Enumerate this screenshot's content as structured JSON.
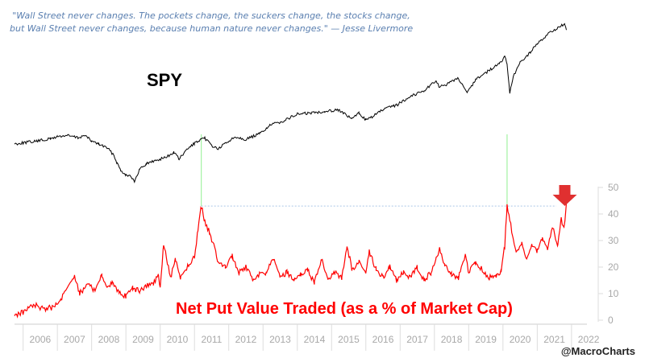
{
  "quote": {
    "line1": "\"Wall Street never changes. The pockets change, the suckers change, the stocks change,",
    "line2": "but Wall Street never changes, because human nature never changes.\" — Jesse Livermore"
  },
  "credit": "@MacroCharts",
  "colors": {
    "spy_line": "#000000",
    "put_line": "#ff0000",
    "spike_connector": "#90ee90",
    "threshold_line": "#aac8e8",
    "arrow": "#e03030",
    "axis_text": "#a8a8a8"
  },
  "chart_data": [
    {
      "type": "line",
      "series": [
        {
          "name": "SPY"
        }
      ],
      "label": "SPY",
      "x": [
        2005.75,
        2006.0,
        2006.4,
        2006.8,
        2007.0,
        2007.3,
        2007.6,
        2007.8,
        2008.0,
        2008.2,
        2008.45,
        2008.65,
        2008.75,
        2008.85,
        2009.0,
        2009.15,
        2009.25,
        2009.4,
        2009.6,
        2009.9,
        2010.2,
        2010.4,
        2010.55,
        2010.8,
        2011.0,
        2011.3,
        2011.55,
        2011.7,
        2011.9,
        2012.2,
        2012.5,
        2012.9,
        2013.2,
        2013.6,
        2014.0,
        2014.4,
        2014.8,
        2015.2,
        2015.45,
        2015.6,
        2015.8,
        2016.0,
        2016.1,
        2016.5,
        2016.9,
        2017.3,
        2017.7,
        2018.05,
        2018.15,
        2018.4,
        2018.7,
        2018.97,
        2019.2,
        2019.5,
        2019.9,
        2020.05,
        2020.12,
        2020.2,
        2020.3,
        2020.5,
        2020.8,
        2021.0,
        2021.3,
        2021.6,
        2021.8,
        2021.85
      ],
      "values": [
        155,
        157,
        160,
        164,
        168,
        170,
        166,
        170,
        160,
        155,
        148,
        135,
        120,
        108,
        100,
        98,
        86,
        110,
        120,
        126,
        132,
        140,
        128,
        146,
        156,
        165,
        150,
        146,
        156,
        168,
        163,
        173,
        188,
        196,
        208,
        210,
        213,
        216,
        205,
        200,
        210,
        198,
        200,
        216,
        224,
        240,
        250,
        268,
        256,
        262,
        272,
        246,
        270,
        282,
        298,
        310,
        298,
        245,
        274,
        300,
        318,
        334,
        350,
        362,
        368,
        358
      ]
    },
    {
      "type": "line",
      "series": [
        {
          "name": "Net Put Value Traded (as a % of Market Cap)"
        }
      ],
      "label": "Net Put Value Traded (as a % of Market Cap)",
      "x": [
        2005.75,
        2006.0,
        2006.3,
        2006.6,
        2006.9,
        2007.1,
        2007.3,
        2007.5,
        2007.65,
        2007.9,
        2008.1,
        2008.3,
        2008.45,
        2008.6,
        2008.8,
        2009.0,
        2009.2,
        2009.4,
        2009.6,
        2009.8,
        2009.95,
        2010.0,
        2010.1,
        2010.3,
        2010.45,
        2010.6,
        2010.8,
        2011.0,
        2011.1,
        2011.2,
        2011.3,
        2011.45,
        2011.7,
        2011.9,
        2012.1,
        2012.3,
        2012.5,
        2012.7,
        2012.9,
        2013.1,
        2013.3,
        2013.5,
        2013.7,
        2013.9,
        2014.1,
        2014.3,
        2014.5,
        2014.7,
        2014.9,
        2015.1,
        2015.3,
        2015.45,
        2015.6,
        2015.8,
        2016.0,
        2016.1,
        2016.3,
        2016.5,
        2016.7,
        2016.9,
        2017.1,
        2017.3,
        2017.5,
        2017.7,
        2017.9,
        2018.05,
        2018.15,
        2018.3,
        2018.5,
        2018.7,
        2018.9,
        2019.0,
        2019.2,
        2019.4,
        2019.6,
        2019.8,
        2019.95,
        2020.05,
        2020.12,
        2020.2,
        2020.3,
        2020.4,
        2020.55,
        2020.7,
        2020.85,
        2021.0,
        2021.15,
        2021.3,
        2021.45,
        2021.6,
        2021.7,
        2021.78,
        2021.85
      ],
      "values": [
        2,
        3,
        6,
        4,
        5,
        8,
        12,
        17,
        10,
        14,
        11,
        17,
        12,
        14,
        10,
        9,
        12,
        11,
        13,
        14,
        17,
        12,
        29,
        16,
        23,
        16,
        20,
        24,
        34,
        43,
        37,
        33,
        22,
        20,
        24,
        18,
        20,
        15,
        17,
        18,
        23,
        16,
        18,
        15,
        17,
        19,
        14,
        23,
        16,
        18,
        16,
        28,
        19,
        22,
        17,
        26,
        19,
        16,
        20,
        15,
        18,
        16,
        20,
        15,
        18,
        23,
        27,
        21,
        17,
        16,
        24,
        18,
        22,
        19,
        16,
        17,
        18,
        28,
        43,
        38,
        30,
        25,
        29,
        23,
        28,
        26,
        31,
        27,
        35,
        28,
        38,
        34,
        44
      ]
    }
  ],
  "put_axis": {
    "ylim": [
      0,
      50
    ],
    "ticks": [
      "50",
      "40",
      "30",
      "20",
      "10",
      "0"
    ]
  },
  "x_axis": {
    "xlim": [
      2005.75,
      2022.45
    ],
    "ticks": [
      "2006",
      "2007",
      "2008",
      "2009",
      "2010",
      "2011",
      "2012",
      "2013",
      "2014",
      "2015",
      "2016",
      "2017",
      "2018",
      "2019",
      "2020",
      "2021",
      "2022"
    ]
  },
  "spike_markers": [
    2011.2,
    2020.12
  ],
  "threshold": 43
}
